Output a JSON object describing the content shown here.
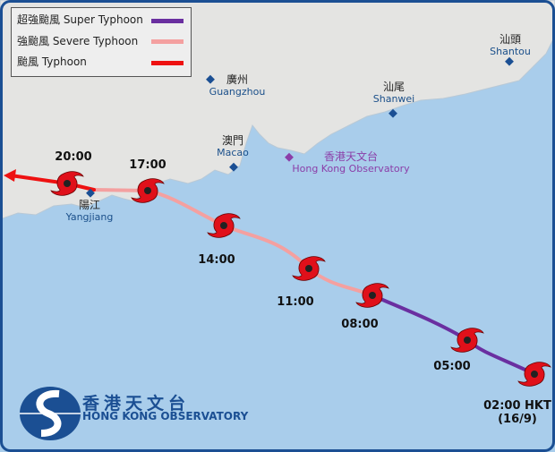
{
  "legend": {
    "items": [
      {
        "label": "超強颱風 Super Typhoon",
        "color": "#6a2fa0"
      },
      {
        "label": "強颱風 Severe Typhoon",
        "color": "#f4a0a0"
      },
      {
        "label": "颱風 Typhoon",
        "color": "#ee1111"
      }
    ]
  },
  "places": [
    {
      "zh": "汕頭",
      "en": "Shantou"
    },
    {
      "zh": "廣州",
      "en": "Guangzhou"
    },
    {
      "zh": "汕尾",
      "en": "Shanwei"
    },
    {
      "zh": "澳門",
      "en": "Macao"
    },
    {
      "zh": "香港天文台",
      "en": "Hong Kong Observatory"
    },
    {
      "zh": "陽江",
      "en": "Yangjiang"
    }
  ],
  "track": [
    {
      "time": "02:00 HKT",
      "date": "(16/9)",
      "intensity": "Super Typhoon"
    },
    {
      "time": "05:00",
      "intensity": "Super Typhoon"
    },
    {
      "time": "08:00",
      "intensity": "Super Typhoon"
    },
    {
      "time": "11:00",
      "intensity": "Severe Typhoon"
    },
    {
      "time": "14:00",
      "intensity": "Severe Typhoon"
    },
    {
      "time": "17:00",
      "intensity": "Severe Typhoon"
    },
    {
      "time": "20:00",
      "intensity": "Typhoon"
    }
  ],
  "logo": {
    "zh": "香港天文台",
    "en": "HONG KONG OBSERVATORY"
  },
  "colors": {
    "sea": "#a9cdeb",
    "land": "#e4e4e2",
    "frame": "#1b4f93"
  }
}
